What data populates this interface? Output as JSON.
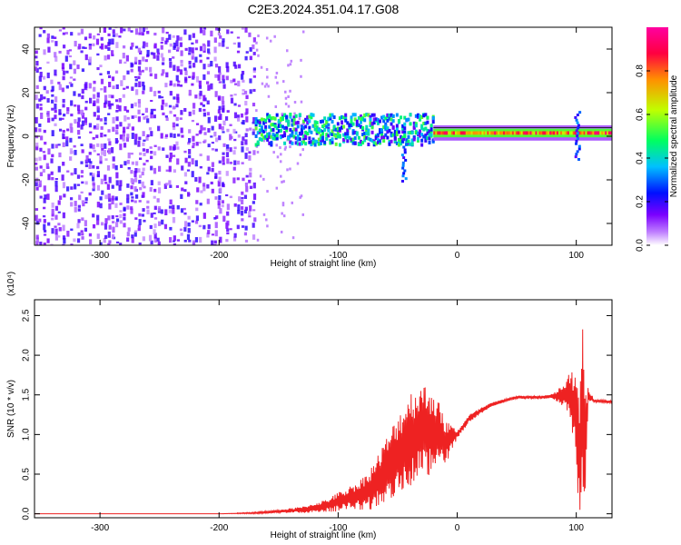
{
  "title": "C2E3.2024.351.04.17.G08",
  "chart_data": [
    {
      "type": "heatmap",
      "xlabel": "Height of straight line (km)",
      "ylabel": "Frequency (Hz)",
      "xlim": [
        -355,
        130
      ],
      "ylim": [
        -50,
        50
      ],
      "xticks": [
        -300,
        -200,
        -100,
        0,
        100
      ],
      "yticks": [
        -40,
        -20,
        0,
        20,
        40
      ],
      "colorbar": {
        "label": "Normalized spectral amplitude",
        "range": [
          0.0,
          1.0
        ],
        "ticks": [
          0.0,
          0.2,
          0.4,
          0.6,
          0.8
        ],
        "tick_labels": [
          "0.0",
          "0.2",
          "0.4",
          "0.6",
          "0.8"
        ],
        "colormap": [
          "#ffffff",
          "#7b00ff",
          "#0010ff",
          "#00c0ff",
          "#00ff60",
          "#c0ff00",
          "#ff9000",
          "#ff0040",
          "#ff00a0"
        ]
      },
      "regions": [
        {
          "x_from": -355,
          "x_to": -170,
          "freq_band": [
            -50,
            50
          ],
          "amplitude": 0.1,
          "description": "broadband noise"
        },
        {
          "x_from": -170,
          "x_to": -20,
          "freq_center": 3,
          "freq_halfwidth": 7,
          "amplitude": 0.35
        },
        {
          "x_from": -20,
          "x_to": 130,
          "freq_center": 1.5,
          "freq_halfwidth": 2,
          "amplitude": 0.9
        }
      ],
      "extra_features": [
        {
          "x": -45,
          "freq_from": -20,
          "freq_to": 0
        },
        {
          "x": 100,
          "freq_from": -10,
          "freq_to": 12
        }
      ]
    },
    {
      "type": "line",
      "xlabel": "Height of straight line (km)",
      "ylabel": "SNR (10 * v/v)",
      "y_multiplier": "(x10⁴)",
      "xlim": [
        -355,
        130
      ],
      "ylim": [
        -0.05,
        2.7
      ],
      "xticks": [
        -300,
        -200,
        -100,
        0,
        100
      ],
      "yticks": [
        0.0,
        0.5,
        1.0,
        1.5,
        2.0,
        2.5
      ],
      "ytick_labels": [
        "0.0",
        "0.5",
        "1.0",
        "1.5",
        "2.0",
        "2.5"
      ],
      "color": "#ee2222",
      "series": [
        {
          "x": [
            -355,
            -300,
            -250,
            -200,
            -170,
            -150,
            -130,
            -110,
            -100,
            -90,
            -80,
            -70,
            -60,
            -50,
            -40,
            -30,
            -20,
            -10,
            0,
            10,
            20,
            30,
            40,
            50,
            60,
            70,
            80,
            90,
            95,
            100,
            103,
            105,
            107,
            110,
            115,
            120,
            130
          ],
          "y": [
            0.0,
            0.0,
            0.0,
            0.0,
            0.01,
            0.03,
            0.05,
            0.1,
            0.15,
            0.2,
            0.25,
            0.35,
            0.55,
            0.75,
            0.95,
            1.05,
            1.05,
            0.9,
            1.0,
            1.2,
            1.3,
            1.38,
            1.43,
            1.47,
            1.47,
            1.47,
            1.48,
            1.5,
            1.5,
            1.2,
            0.6,
            1.3,
            0.8,
            1.5,
            1.42,
            1.42,
            1.41
          ],
          "noise": [
            0.0,
            0.0,
            0.0,
            0.0,
            0.01,
            0.02,
            0.04,
            0.08,
            0.12,
            0.15,
            0.2,
            0.3,
            0.4,
            0.5,
            0.6,
            0.6,
            0.55,
            0.3,
            0.05,
            0.05,
            0.04,
            0.03,
            0.02,
            0.02,
            0.02,
            0.02,
            0.03,
            0.15,
            0.3,
            0.6,
            0.9,
            1.2,
            0.9,
            0.1,
            0.02,
            0.02,
            0.02
          ]
        }
      ]
    }
  ]
}
